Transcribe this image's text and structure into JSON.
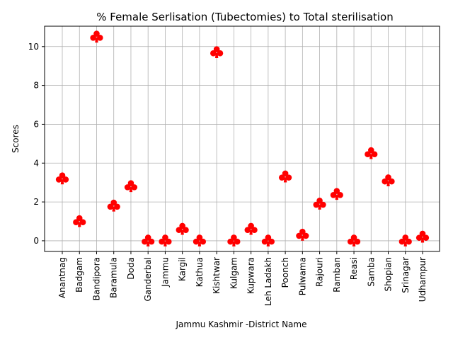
{
  "chart_data": {
    "type": "scatter",
    "title": "% Female Serlisation (Tubectomies) to Total sterilisation",
    "xlabel": "Jammu Kashmir -District Name",
    "ylabel": "Scores",
    "categories": [
      "Anantnag",
      "Badgam",
      "Bandipora",
      "Baramula",
      "Doda",
      "Ganderbal",
      "Jammu",
      "Kargil",
      "Kathua",
      "Kishtwar",
      "Kulgam",
      "Kupwara",
      "Leh Ladakh",
      "Poonch",
      "Pulwama",
      "Rajouri",
      "Ramban",
      "Reasi",
      "Samba",
      "Shopian",
      "Srinagar",
      "Udhampur"
    ],
    "values": [
      3.2,
      1.0,
      10.5,
      1.8,
      2.8,
      0.0,
      0.0,
      0.6,
      0.0,
      9.7,
      0.0,
      0.6,
      0.0,
      3.3,
      0.3,
      1.9,
      2.4,
      0.0,
      4.5,
      3.1,
      0.0,
      0.2
    ],
    "ylim": [
      -0.55,
      11.05
    ],
    "yticks": [
      0,
      2,
      4,
      6,
      8,
      10
    ],
    "grid": true,
    "marker": "club",
    "marker_color": "#ff0000"
  }
}
